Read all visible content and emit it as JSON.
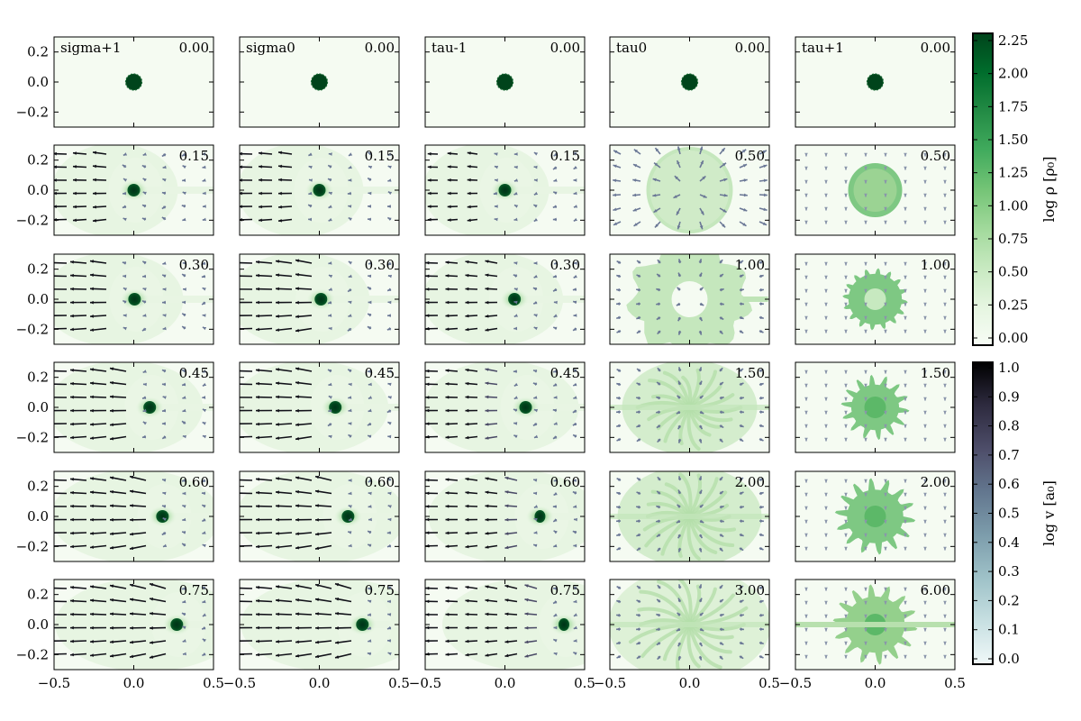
{
  "chart_data": {
    "type": "heatmap",
    "grid": {
      "rows": 6,
      "cols": 5
    },
    "columns": [
      {
        "name": "sigma+1",
        "times": [
          "0.00",
          "0.15",
          "0.30",
          "0.45",
          "0.60",
          "0.75"
        ],
        "cloud_x": [
          0.0,
          0.0,
          0.005,
          0.1,
          0.18,
          0.27
        ],
        "morph": "shock"
      },
      {
        "name": "sigma0",
        "times": [
          "0.00",
          "0.15",
          "0.30",
          "0.45",
          "0.60",
          "0.75"
        ],
        "cloud_x": [
          0.0,
          0.0,
          0.01,
          0.1,
          0.18,
          0.27
        ],
        "morph": "shock"
      },
      {
        "name": "tau-1",
        "times": [
          "0.00",
          "0.15",
          "0.30",
          "0.45",
          "0.60",
          "0.75"
        ],
        "cloud_x": [
          0.0,
          0.0,
          0.06,
          0.13,
          0.22,
          0.37
        ],
        "morph": "shock"
      },
      {
        "name": "tau0",
        "times": [
          "0.00",
          "0.50",
          "1.00",
          "1.50",
          "2.00",
          "3.00"
        ],
        "cloud_x": [
          0,
          0,
          0,
          0,
          0,
          0
        ],
        "morph": "expand"
      },
      {
        "name": "tau+1",
        "times": [
          "0.00",
          "0.50",
          "1.00",
          "1.50",
          "2.00",
          "6.00"
        ],
        "cloud_x": [
          0,
          0,
          0,
          0,
          0,
          0
        ],
        "morph": "compact"
      }
    ],
    "x_range": [
      -0.5,
      0.5
    ],
    "y_range": [
      -0.3,
      0.3
    ],
    "x_ticks": [
      "−0.5",
      "0.0",
      "0.5"
    ],
    "y_ticks": [
      "0.2",
      "0.0",
      "−0.2"
    ],
    "colorbars": [
      {
        "label": "log ρ [ρ₀]",
        "range": [
          0.0,
          2.25
        ],
        "ticks": [
          "0.00",
          "0.25",
          "0.50",
          "0.75",
          "1.00",
          "1.25",
          "1.50",
          "1.75",
          "2.00",
          "2.25"
        ],
        "colors": [
          "#f7fcf5",
          "#e5f5e0",
          "#c7e9c0",
          "#a1d99b",
          "#74c476",
          "#41ab5d",
          "#238b45",
          "#006d2c",
          "#00441b"
        ]
      },
      {
        "label": "log v [a₀]",
        "range": [
          0.0,
          1.0
        ],
        "ticks": [
          "0.0",
          "0.1",
          "0.2",
          "0.3",
          "0.4",
          "0.5",
          "0.6",
          "0.7",
          "0.8",
          "0.9",
          "1.0"
        ],
        "colors": [
          "#f0f8f8",
          "#c8e0e2",
          "#a0c3c9",
          "#7c9cab",
          "#63778f",
          "#4e4e6a",
          "#2d2a3e",
          "#000000"
        ]
      }
    ]
  }
}
